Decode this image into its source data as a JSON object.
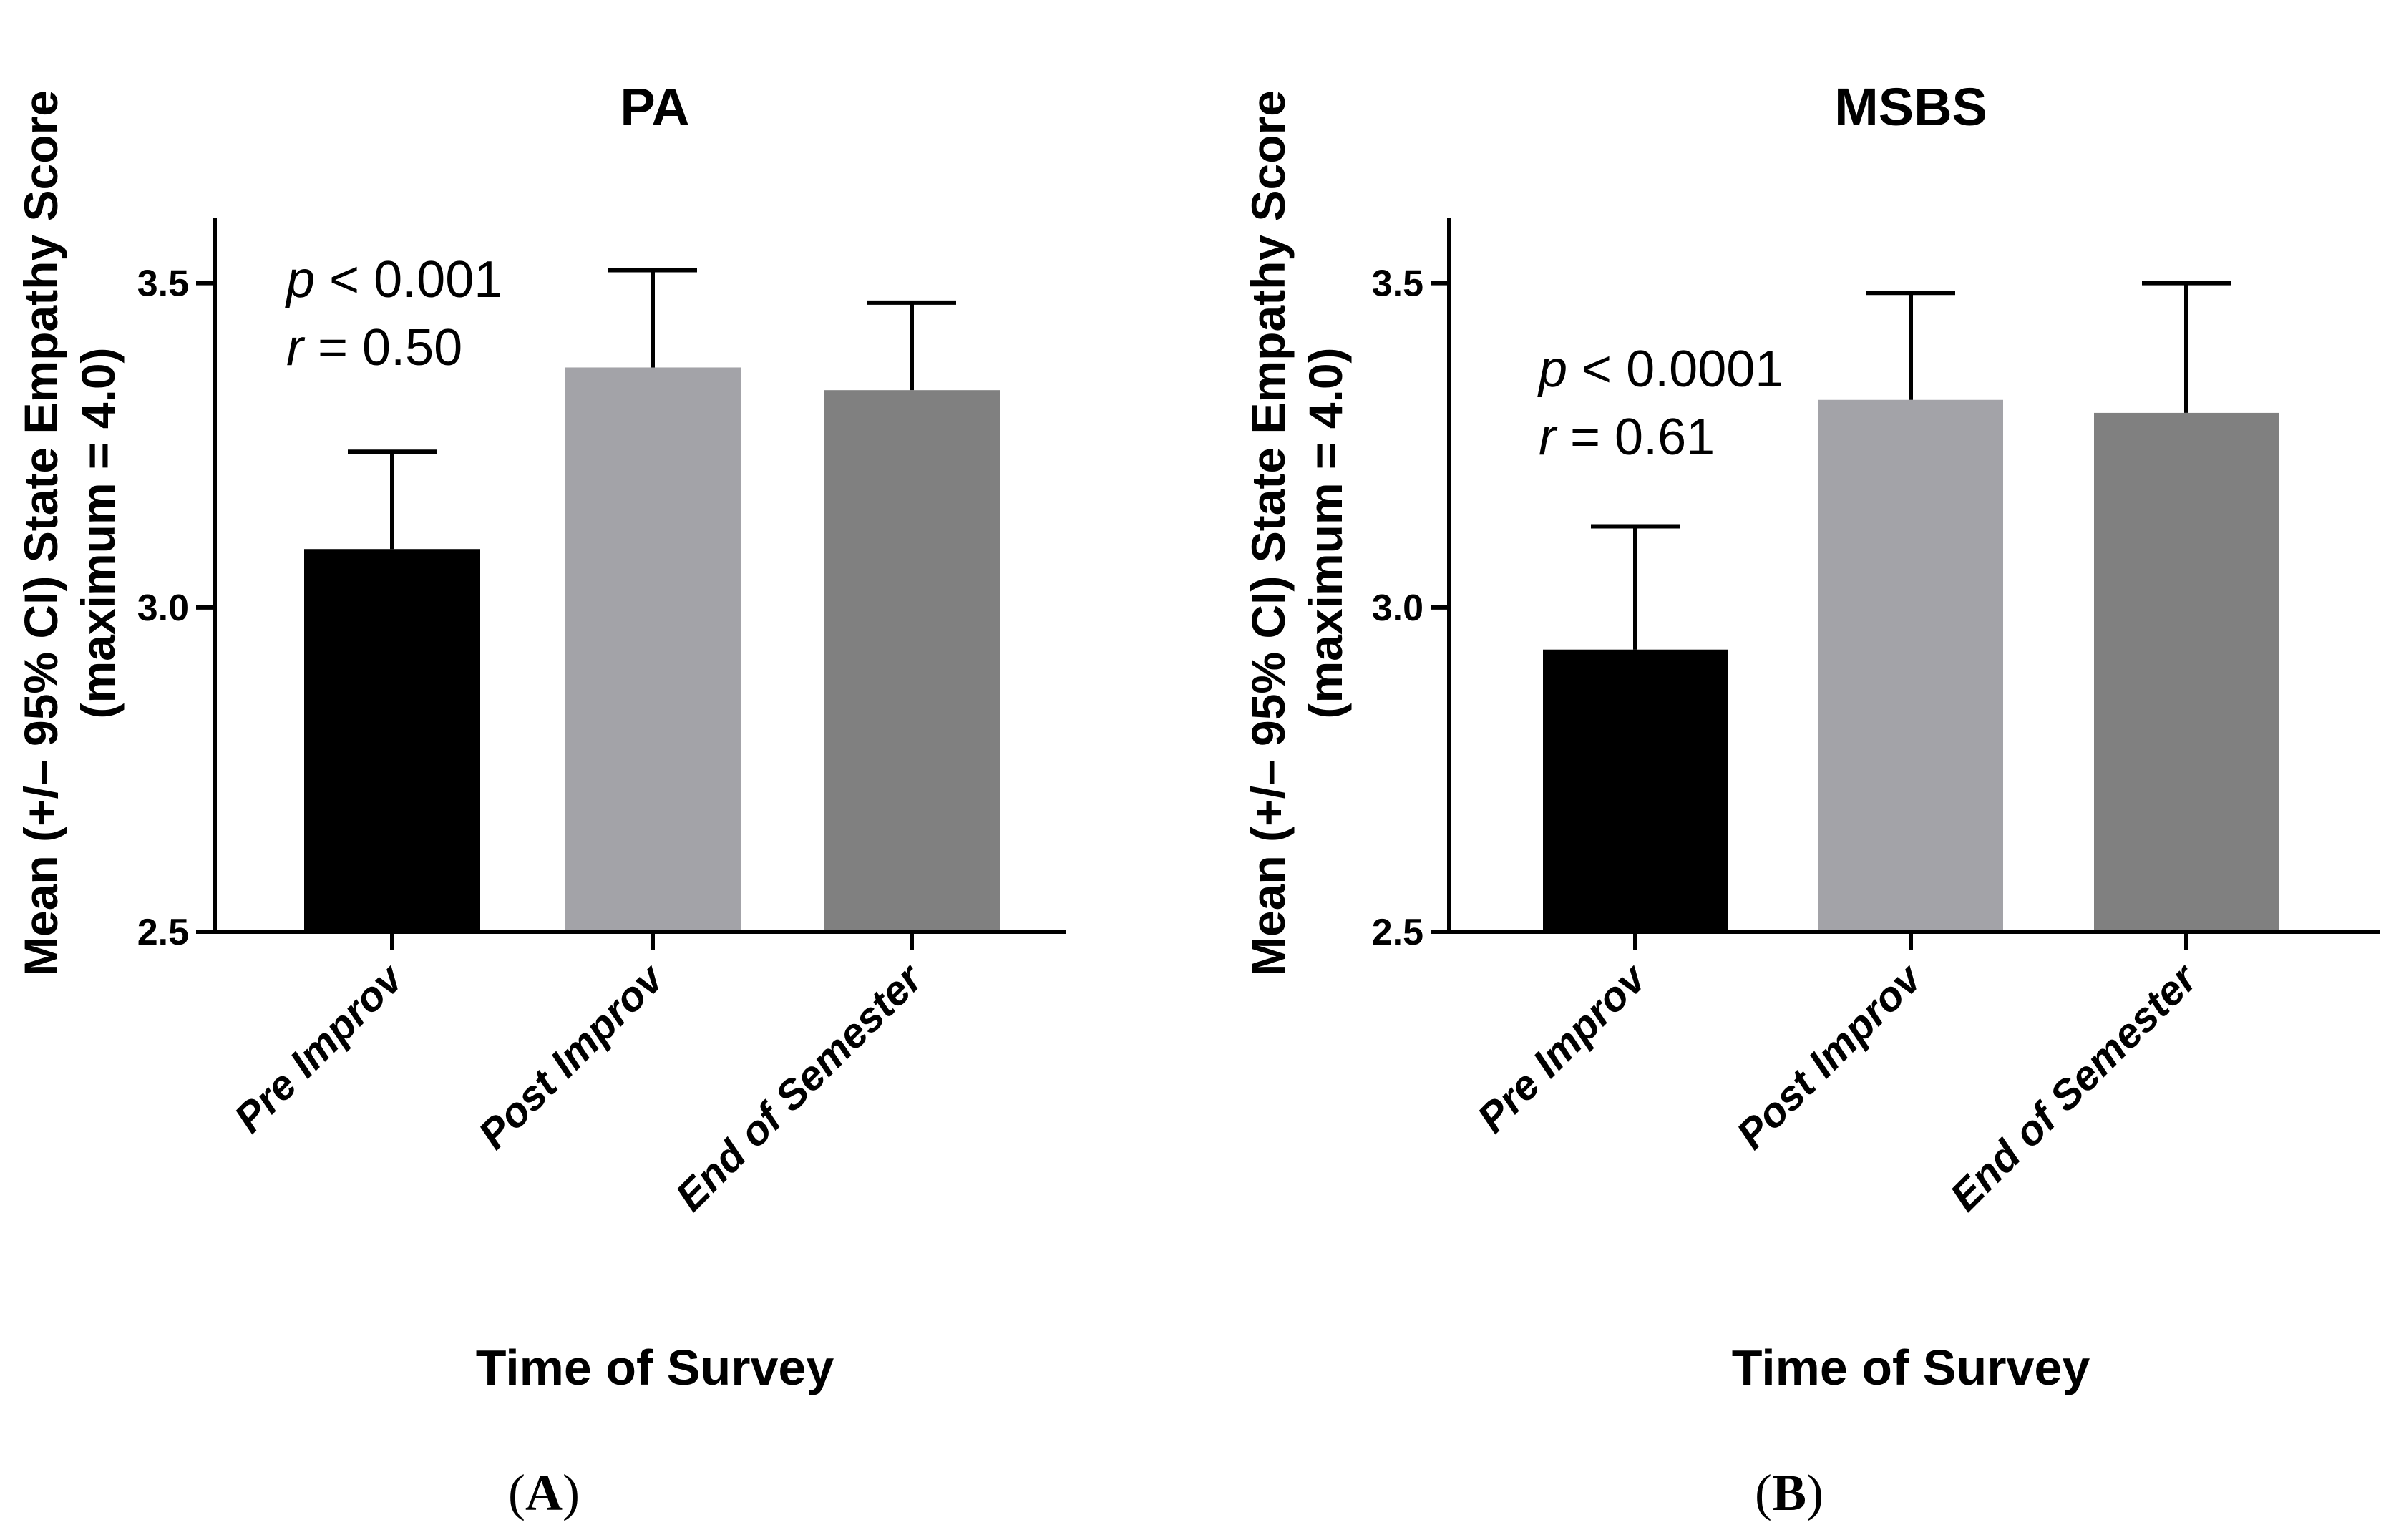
{
  "chart_data": [
    {
      "type": "bar",
      "panel_label": "A",
      "title": "PA",
      "ylabel_line1": "Mean (+/– 95% CI) State Empathy Score",
      "ylabel_line2": "(maximum = 4.0)",
      "xlabel": "Time of Survey",
      "categories": [
        "Pre Improv",
        "Post Improv",
        "End of Semester"
      ],
      "values": [
        3.09,
        3.37,
        3.335
      ],
      "error_upper": [
        3.24,
        3.52,
        3.47
      ],
      "colors": [
        "#000000",
        "#a3a3a8",
        "#808080"
      ],
      "ylim": [
        2.5,
        3.6
      ],
      "yticks": [
        2.5,
        3.0,
        3.5
      ],
      "ytick_labels": [
        "2.5",
        "3.0",
        "3.5"
      ],
      "annotation": {
        "p_symbol": "p",
        "p_text": " < 0.001",
        "r_symbol": "r",
        "r_text": " = 0.50"
      }
    },
    {
      "type": "bar",
      "panel_label": "B",
      "title": "MSBS",
      "ylabel_line1": "Mean (+/– 95% CI) State Empathy Score",
      "ylabel_line2": "(maximum = 4.0)",
      "xlabel": "Time of Survey",
      "categories": [
        "Pre Improv",
        "Post Improv",
        "End of Semester"
      ],
      "values": [
        2.935,
        3.32,
        3.3
      ],
      "error_upper": [
        3.125,
        3.485,
        3.5
      ],
      "colors": [
        "#000000",
        "#a3a3a8",
        "#808080"
      ],
      "ylim": [
        2.5,
        3.6
      ],
      "yticks": [
        2.5,
        3.0,
        3.5
      ],
      "ytick_labels": [
        "2.5",
        "3.0",
        "3.5"
      ],
      "annotation": {
        "p_symbol": "p",
        "p_text": " < 0.0001",
        "r_symbol": "r",
        "r_text": " = 0.61"
      }
    }
  ]
}
